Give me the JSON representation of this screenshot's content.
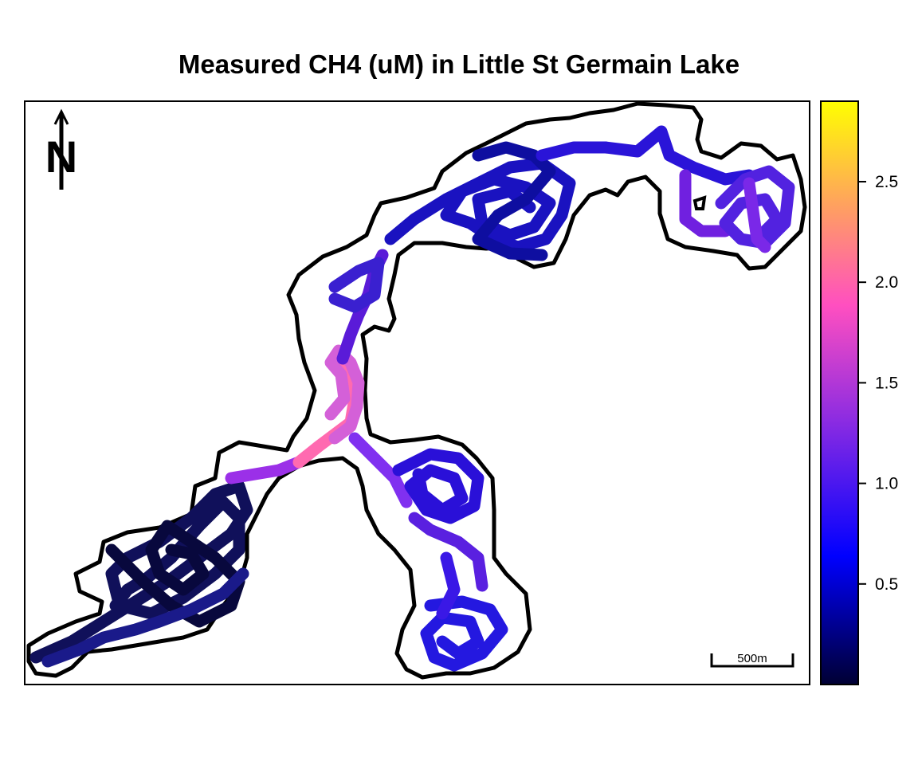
{
  "title": "Measured CH4 (uM) in Little St Germain Lake",
  "north_arrow": {
    "label": "N",
    "icon": "north-arrow-icon"
  },
  "scale_bar": {
    "label": "500m"
  },
  "legend": {
    "ticks": [
      "0.5",
      "1.0",
      "1.5",
      "2.0",
      "2.5"
    ],
    "tick_values": [
      0.5,
      1.0,
      1.5,
      2.0,
      2.5
    ],
    "range": [
      0.0,
      2.9
    ],
    "colors": [
      "#000033",
      "#0000ff",
      "#8a2be2",
      "#ff4fc0",
      "#ffa060",
      "#ffff00"
    ]
  }
}
